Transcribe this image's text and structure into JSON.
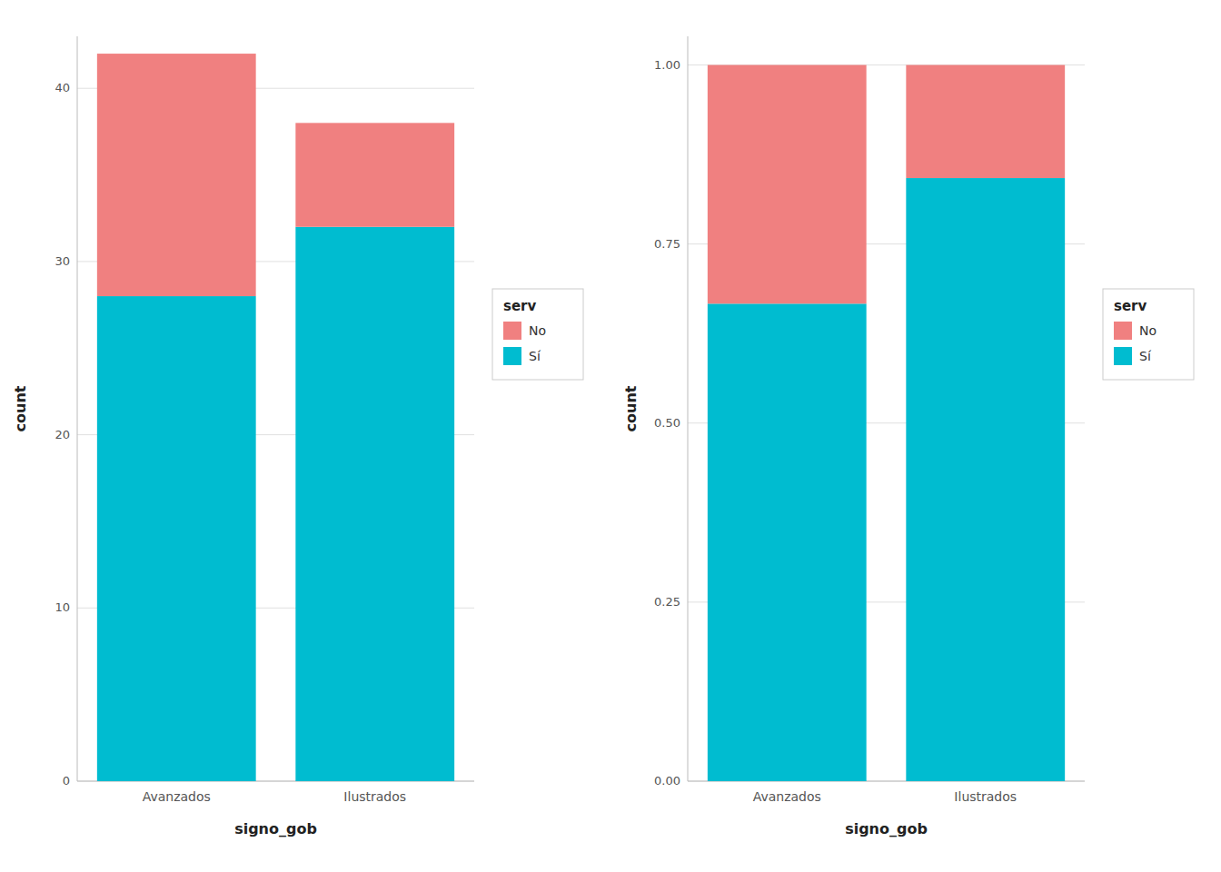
{
  "chart_data": [
    {
      "type": "bar",
      "stacked": true,
      "categories": [
        "Avanzados",
        "Ilustrados"
      ],
      "series": [
        {
          "name": "Sí",
          "color": "#00BCD0",
          "values": [
            28,
            32
          ]
        },
        {
          "name": "No",
          "color": "#F08080",
          "values": [
            14,
            6
          ]
        }
      ],
      "xlabel": "signo_gob",
      "ylabel": "count",
      "legend_title": "serv",
      "ylim": [
        0,
        43
      ],
      "yticks": [
        0,
        10,
        20,
        30,
        40
      ],
      "grid": true,
      "legend": "right"
    },
    {
      "type": "bar",
      "stacked": true,
      "categories": [
        "Avanzados",
        "Ilustrados"
      ],
      "series": [
        {
          "name": "Sí",
          "color": "#00BCD0",
          "values": [
            0.6667,
            0.8421
          ]
        },
        {
          "name": "No",
          "color": "#F08080",
          "values": [
            0.3333,
            0.1579
          ]
        }
      ],
      "xlabel": "signo_gob",
      "ylabel": "count",
      "legend_title": "serv",
      "ylim": [
        0,
        1.04
      ],
      "yticks": [
        {
          "value": 0,
          "label": "0.00"
        },
        0.25,
        {
          "value": 0.5,
          "label": "0.50"
        },
        0.75,
        {
          "value": 1,
          "label": "1.00"
        }
      ],
      "grid": true,
      "legend": "right"
    }
  ]
}
